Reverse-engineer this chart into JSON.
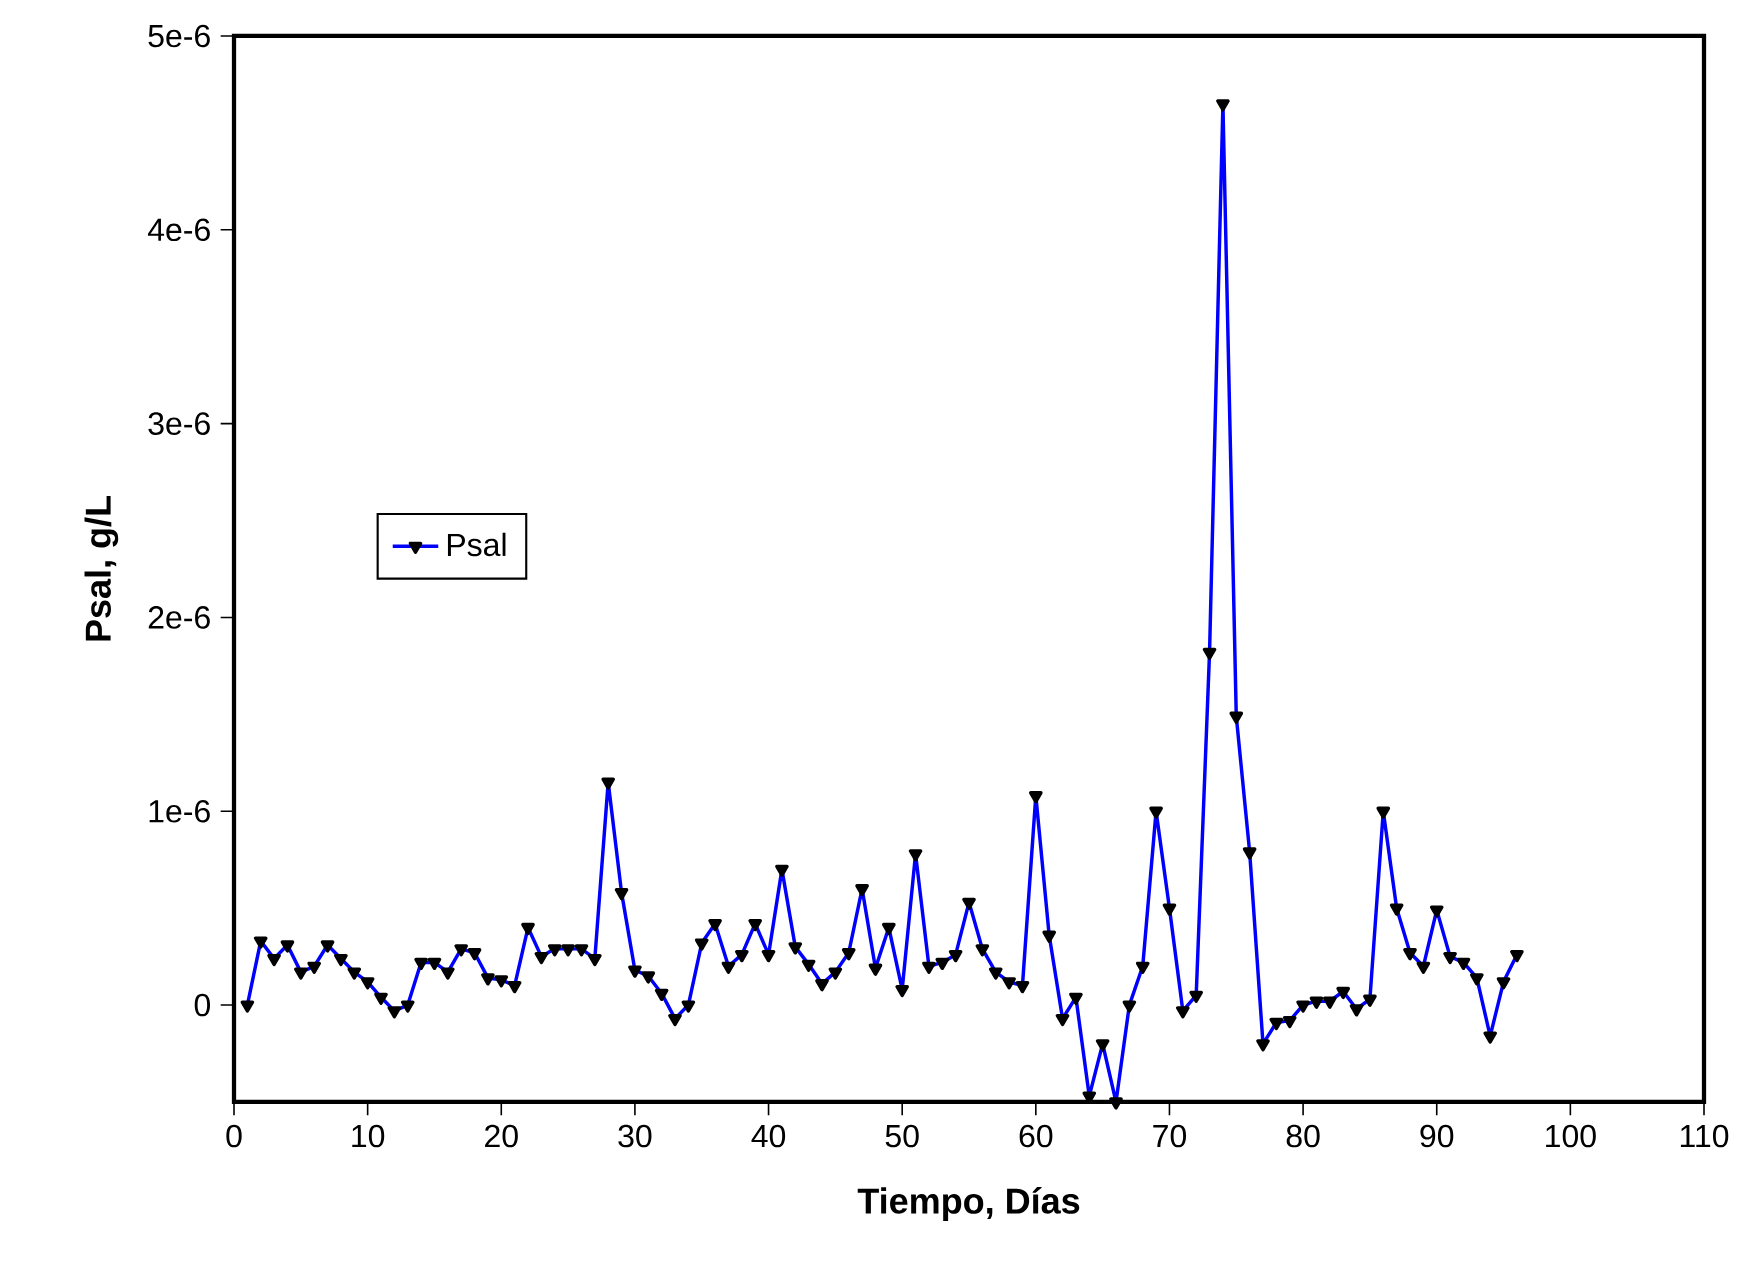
{
  "chart_data": {
    "type": "line",
    "xlabel": "Tiempo, Días",
    "ylabel": "Psal, g/L",
    "x": [
      1,
      2,
      3,
      4,
      5,
      6,
      7,
      8,
      9,
      10,
      11,
      12,
      13,
      14,
      15,
      16,
      17,
      18,
      19,
      20,
      21,
      22,
      23,
      24,
      25,
      26,
      27,
      28,
      29,
      30,
      31,
      32,
      33,
      34,
      35,
      36,
      37,
      38,
      39,
      40,
      41,
      42,
      43,
      44,
      45,
      46,
      47,
      48,
      49,
      50,
      51,
      52,
      53,
      54,
      55,
      56,
      57,
      58,
      59,
      60,
      61,
      62,
      63,
      64,
      65,
      66,
      67,
      68,
      69,
      70,
      71,
      72,
      73,
      74,
      75,
      76,
      77,
      78,
      79,
      80,
      81,
      82,
      83,
      84,
      85,
      86,
      87,
      88,
      89,
      90,
      91,
      92,
      93,
      94,
      95,
      96
    ],
    "series": [
      {
        "name": "Psal",
        "color": "#0000ff",
        "values": [
          0.0,
          3.3e-07,
          2.4e-07,
          3.1e-07,
          1.7e-07,
          2e-07,
          3.1e-07,
          2.4e-07,
          1.7e-07,
          1.2e-07,
          4e-08,
          -3e-08,
          0.0,
          2.2e-07,
          2.2e-07,
          1.7e-07,
          2.9e-07,
          2.7e-07,
          1.4e-07,
          1.3e-07,
          1e-07,
          4e-07,
          2.5e-07,
          2.9e-07,
          2.9e-07,
          2.9e-07,
          2.4e-07,
          1.15e-06,
          5.8e-07,
          1.8e-07,
          1.5e-07,
          6e-08,
          -7e-08,
          0.0,
          3.2e-07,
          4.2e-07,
          2e-07,
          2.6e-07,
          4.2e-07,
          2.6e-07,
          7e-07,
          3e-07,
          2.1e-07,
          1.1e-07,
          1.7e-07,
          2.7e-07,
          6e-07,
          1.9e-07,
          4e-07,
          8e-08,
          7.8e-07,
          2e-07,
          2.2e-07,
          2.6e-07,
          5.3e-07,
          2.9e-07,
          1.7e-07,
          1.2e-07,
          1e-07,
          1.08e-06,
          3.6e-07,
          -7e-08,
          4e-08,
          -4.7e-07,
          -2e-07,
          -5e-07,
          0.0,
          2e-07,
          1e-06,
          5e-07,
          -3e-08,
          5e-08,
          1.82e-06,
          4.65e-06,
          1.49e-06,
          7.9e-07,
          -2e-07,
          -9e-08,
          -8e-08,
          0.0,
          2e-08,
          2e-08,
          7e-08,
          -2e-08,
          3e-08,
          1e-06,
          5e-07,
          2.7e-07,
          2e-07,
          4.9e-07,
          2.5e-07,
          2.2e-07,
          1.4e-07,
          -1.6e-07,
          1.2e-07,
          2.6e-07
        ]
      }
    ],
    "xlim": [
      0,
      110
    ],
    "xticks": [
      0,
      10,
      20,
      30,
      40,
      50,
      60,
      70,
      80,
      90,
      100,
      110
    ],
    "ylim": [
      -5e-07,
      5e-06
    ],
    "yticks": [
      {
        "value": 0,
        "label": "0"
      },
      {
        "value": 1e-06,
        "label": "1e-6"
      },
      {
        "value": 2e-06,
        "label": "2e-6"
      },
      {
        "value": 3e-06,
        "label": "3e-6"
      },
      {
        "value": 4e-06,
        "label": "4e-6"
      },
      {
        "value": 5e-06,
        "label": "5e-6"
      }
    ],
    "grid": false,
    "legend": "left",
    "marker": "triangle",
    "line_style": "solid"
  }
}
